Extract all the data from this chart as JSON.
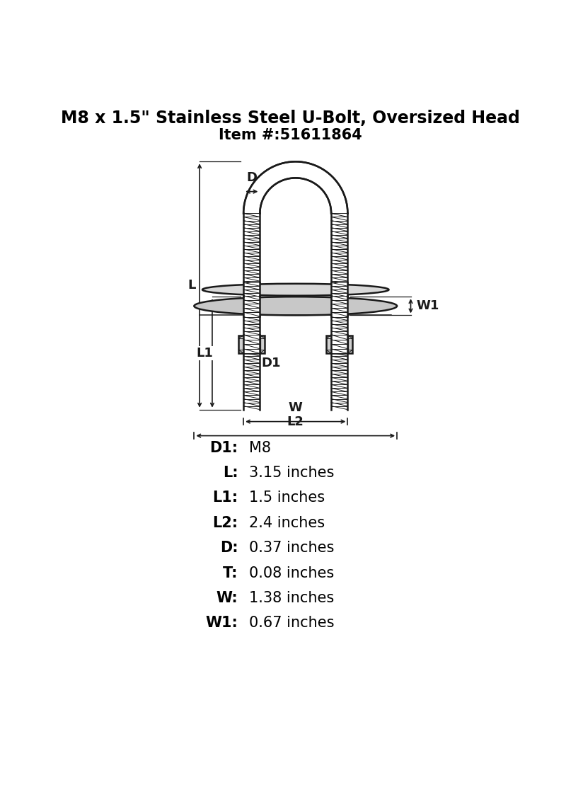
{
  "title_line1": "M8 x 1.5\" Stainless Steel U-Bolt, Oversized Head",
  "title_line2": "Item #:51611864",
  "specs": [
    {
      "label": "D1:",
      "value": "M8"
    },
    {
      "label": "L:",
      "value": "3.15 inches"
    },
    {
      "label": "L1:",
      "value": "1.5 inches"
    },
    {
      "label": "L2:",
      "value": "2.4 inches"
    },
    {
      "label": "D:",
      "value": "0.37 inches"
    },
    {
      "label": "T:",
      "value": "0.08 inches"
    },
    {
      "label": "W:",
      "value": "1.38 inches"
    },
    {
      "label": "W1:",
      "value": "0.67 inches"
    }
  ],
  "line_color": "#1a1a1a",
  "bg_color": "#ffffff"
}
